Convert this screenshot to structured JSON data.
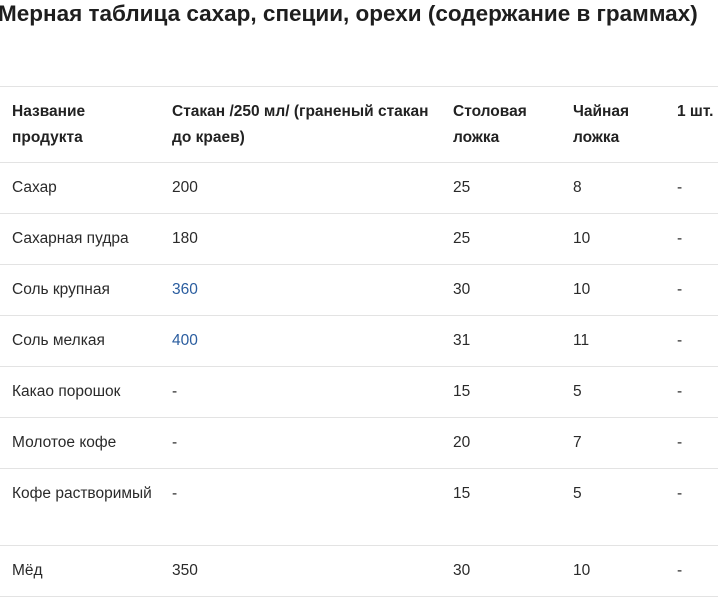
{
  "title": "Мерная таблица сахар, специи, орехи (содержание в граммах)",
  "table": {
    "headers": [
      "Название продукта",
      "Стакан /250 мл/ (граненый стакан до краев)",
      "Столовая ложка",
      "Чайная ложка",
      "1 шт."
    ],
    "rows": [
      [
        "Сахар",
        "200",
        "25",
        "8",
        "-"
      ],
      [
        "Сахарная пудра",
        "180",
        "25",
        "10",
        "-"
      ],
      [
        "Соль крупная",
        "360",
        "30",
        "10",
        "-"
      ],
      [
        "Соль мелкая",
        "400",
        "31",
        "11",
        "-"
      ],
      [
        "Какао порошок",
        "-",
        "15",
        "5",
        "-"
      ],
      [
        "Молотое кофе",
        "-",
        "20",
        "7",
        "-"
      ],
      [
        "Кофе растворимый",
        "-",
        "15",
        "5",
        "-"
      ],
      [
        "Мёд",
        "350",
        "30",
        "10",
        "-"
      ]
    ]
  },
  "colors": {
    "text": "#222222",
    "link": "#2a5d9f",
    "border": "#e3e3e3"
  }
}
